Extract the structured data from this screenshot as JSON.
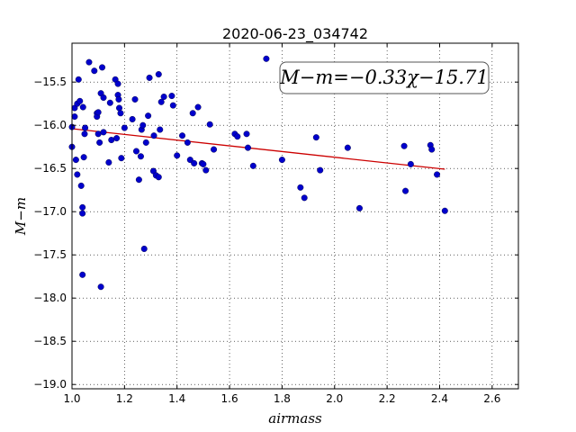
{
  "chart_data": {
    "type": "scatter",
    "title": "2020-06-23_034742",
    "xlabel": "airmass",
    "ylabel": "M−m",
    "xlim": [
      1.0,
      2.7
    ],
    "ylim": [
      -19.05,
      -15.05
    ],
    "y_inverted": true,
    "grid": true,
    "xticks": [
      "1.0",
      "1.2",
      "1.4",
      "1.6",
      "1.8",
      "2.0",
      "2.2",
      "2.4",
      "2.6"
    ],
    "yticks": [
      "−15.5",
      "−16.0",
      "−16.5",
      "−17.0",
      "−17.5",
      "−18.0",
      "−18.5",
      "−19.0"
    ],
    "annotation": "M−m=−0.33χ−15.71",
    "marker_color": "#0000cc",
    "fit_color": "#cc0000",
    "fit": {
      "slope": -0.33,
      "intercept": -15.71,
      "x_range": [
        1.0,
        2.42
      ]
    },
    "points": [
      [
        1.0,
        -16.25
      ],
      [
        1.0,
        -16.02
      ],
      [
        1.01,
        -15.8
      ],
      [
        1.01,
        -15.9
      ],
      [
        1.015,
        -16.4
      ],
      [
        1.02,
        -16.57
      ],
      [
        1.02,
        -15.75
      ],
      [
        1.025,
        -15.47
      ],
      [
        1.03,
        -15.72
      ],
      [
        1.035,
        -16.7
      ],
      [
        1.04,
        -16.95
      ],
      [
        1.04,
        -17.02
      ],
      [
        1.04,
        -17.73
      ],
      [
        1.042,
        -15.79
      ],
      [
        1.045,
        -16.37
      ],
      [
        1.048,
        -16.1
      ],
      [
        1.05,
        -16.03
      ],
      [
        1.065,
        -15.27
      ],
      [
        1.085,
        -15.37
      ],
      [
        1.095,
        -15.86
      ],
      [
        1.095,
        -15.9
      ],
      [
        1.1,
        -15.85
      ],
      [
        1.1,
        -16.1
      ],
      [
        1.105,
        -16.2
      ],
      [
        1.11,
        -17.87
      ],
      [
        1.11,
        -15.63
      ],
      [
        1.115,
        -15.33
      ],
      [
        1.12,
        -16.08
      ],
      [
        1.12,
        -15.68
      ],
      [
        1.14,
        -16.43
      ],
      [
        1.145,
        -15.74
      ],
      [
        1.15,
        -16.17
      ],
      [
        1.165,
        -15.47
      ],
      [
        1.17,
        -16.15
      ],
      [
        1.175,
        -15.52
      ],
      [
        1.175,
        -15.65
      ],
      [
        1.178,
        -15.7
      ],
      [
        1.18,
        -15.8
      ],
      [
        1.185,
        -15.86
      ],
      [
        1.188,
        -16.38
      ],
      [
        1.2,
        -16.03
      ],
      [
        1.23,
        -15.93
      ],
      [
        1.24,
        -15.7
      ],
      [
        1.245,
        -16.3
      ],
      [
        1.255,
        -16.63
      ],
      [
        1.262,
        -16.36
      ],
      [
        1.265,
        -16.05
      ],
      [
        1.27,
        -16.0
      ],
      [
        1.275,
        -17.43
      ],
      [
        1.282,
        -16.2
      ],
      [
        1.29,
        -15.89
      ],
      [
        1.295,
        -15.45
      ],
      [
        1.31,
        -16.53
      ],
      [
        1.312,
        -16.12
      ],
      [
        1.32,
        -16.58
      ],
      [
        1.33,
        -16.6
      ],
      [
        1.33,
        -15.41
      ],
      [
        1.335,
        -16.05
      ],
      [
        1.34,
        -15.73
      ],
      [
        1.35,
        -15.67
      ],
      [
        1.38,
        -15.66
      ],
      [
        1.385,
        -15.77
      ],
      [
        1.4,
        -16.35
      ],
      [
        1.42,
        -16.12
      ],
      [
        1.44,
        -16.2
      ],
      [
        1.45,
        -16.4
      ],
      [
        1.46,
        -15.86
      ],
      [
        1.465,
        -16.44
      ],
      [
        1.48,
        -15.79
      ],
      [
        1.495,
        -16.44
      ],
      [
        1.5,
        -16.45
      ],
      [
        1.51,
        -16.52
      ],
      [
        1.525,
        -15.99
      ],
      [
        1.54,
        -16.28
      ],
      [
        1.62,
        -16.1
      ],
      [
        1.63,
        -16.13
      ],
      [
        1.665,
        -16.1
      ],
      [
        1.67,
        -16.26
      ],
      [
        1.69,
        -16.47
      ],
      [
        1.74,
        -15.23
      ],
      [
        1.8,
        -16.4
      ],
      [
        1.87,
        -16.72
      ],
      [
        1.885,
        -16.84
      ],
      [
        1.93,
        -16.14
      ],
      [
        1.945,
        -16.52
      ],
      [
        2.05,
        -16.26
      ],
      [
        2.095,
        -16.96
      ],
      [
        2.265,
        -16.24
      ],
      [
        2.27,
        -16.76
      ],
      [
        2.29,
        -16.45
      ],
      [
        2.365,
        -16.23
      ],
      [
        2.37,
        -16.28
      ],
      [
        2.39,
        -16.57
      ],
      [
        2.42,
        -16.99
      ]
    ]
  }
}
